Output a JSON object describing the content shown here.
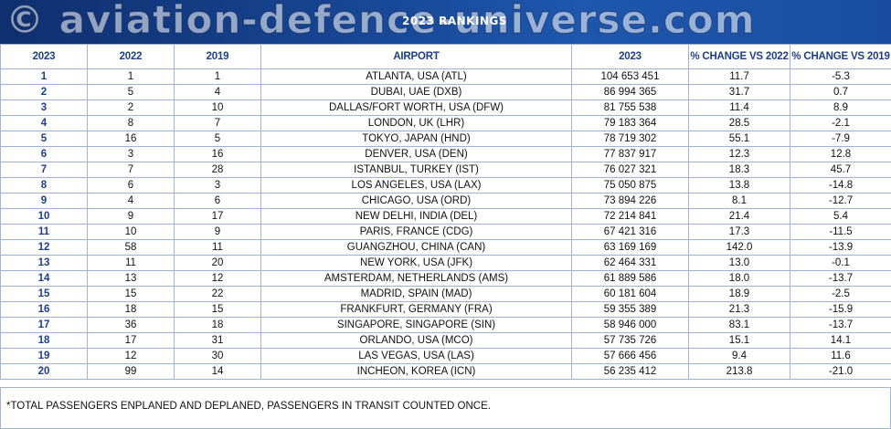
{
  "banner": {
    "watermark": "© aviation-defence-universe.com",
    "title": "2023 RANKINGS"
  },
  "table": {
    "headers": [
      "2023",
      "2022",
      "2019",
      "AIRPORT",
      "2023",
      "% CHANGE VS 2022",
      "% CHANGE VS 2019"
    ],
    "rows": [
      [
        "1",
        "1",
        "1",
        "ATLANTA, USA (ATL)",
        "104 653 451",
        "11.7",
        "-5.3"
      ],
      [
        "2",
        "5",
        "4",
        "DUBAI, UAE (DXB)",
        "86 994 365",
        "31.7",
        "0.7"
      ],
      [
        "3",
        "2",
        "10",
        "DALLAS/FORT WORTH, USA (DFW)",
        "81 755 538",
        "11.4",
        "8.9"
      ],
      [
        "4",
        "8",
        "7",
        "LONDON, UK (LHR)",
        "79 183 364",
        "28.5",
        "-2.1"
      ],
      [
        "5",
        "16",
        "5",
        "TOKYO, JAPAN (HND)",
        "78 719 302",
        "55.1",
        "-7.9"
      ],
      [
        "6",
        "3",
        "16",
        "DENVER, USA (DEN)",
        "77 837 917",
        "12.3",
        "12.8"
      ],
      [
        "7",
        "7",
        "28",
        "ISTANBUL, TURKEY (IST)",
        "76 027 321",
        "18.3",
        "45.7"
      ],
      [
        "8",
        "6",
        "3",
        "LOS ANGELES, USA (LAX)",
        "75 050 875",
        "13.8",
        "-14.8"
      ],
      [
        "9",
        "4",
        "6",
        "CHICAGO, USA (ORD)",
        "73 894 226",
        "8.1",
        "-12.7"
      ],
      [
        "10",
        "9",
        "17",
        "NEW DELHI, INDIA (DEL)",
        "72 214 841",
        "21.4",
        "5.4"
      ],
      [
        "11",
        "10",
        "9",
        "PARIS, FRANCE (CDG)",
        "67 421 316",
        "17.3",
        "-11.5"
      ],
      [
        "12",
        "58",
        "11",
        "GUANGZHOU, CHINA (CAN)",
        "63 169 169",
        "142.0",
        "-13.9"
      ],
      [
        "13",
        "11",
        "20",
        "NEW YORK, USA (JFK)",
        "62 464 331",
        "13.0",
        "-0.1"
      ],
      [
        "14",
        "13",
        "12",
        "AMSTERDAM, NETHERLANDS (AMS)",
        "61 889 586",
        "18.0",
        "-13.7"
      ],
      [
        "15",
        "15",
        "22",
        "MADRID, SPAIN (MAD)",
        "60 181 604",
        "18.9",
        "-2.5"
      ],
      [
        "16",
        "18",
        "15",
        "FRANKFURT, GERMANY (FRA)",
        "59 355 389",
        "21.3",
        "-15.9"
      ],
      [
        "17",
        "36",
        "18",
        "SINGAPORE, SINGAPORE (SIN)",
        "58 946 000",
        "83.1",
        "-13.7"
      ],
      [
        "18",
        "17",
        "31",
        "ORLANDO, USA (MCO)",
        "57 735 726",
        "15.1",
        "14.1"
      ],
      [
        "19",
        "12",
        "30",
        "LAS VEGAS, USA (LAS)",
        "57 666 456",
        "9.4",
        "11.6"
      ],
      [
        "20",
        "99",
        "14",
        "INCHEON, KOREA (ICN)",
        "56 235 412",
        "213.8",
        "-21.0"
      ]
    ]
  },
  "footnote": "*TOTAL PASSENGERS ENPLANED AND DEPLANED, PASSENGERS IN TRANSIT COUNTED ONCE.",
  "colors": {
    "header_text": "#1d3f8a",
    "banner": "#16438f",
    "border": "#9fb3d6"
  }
}
